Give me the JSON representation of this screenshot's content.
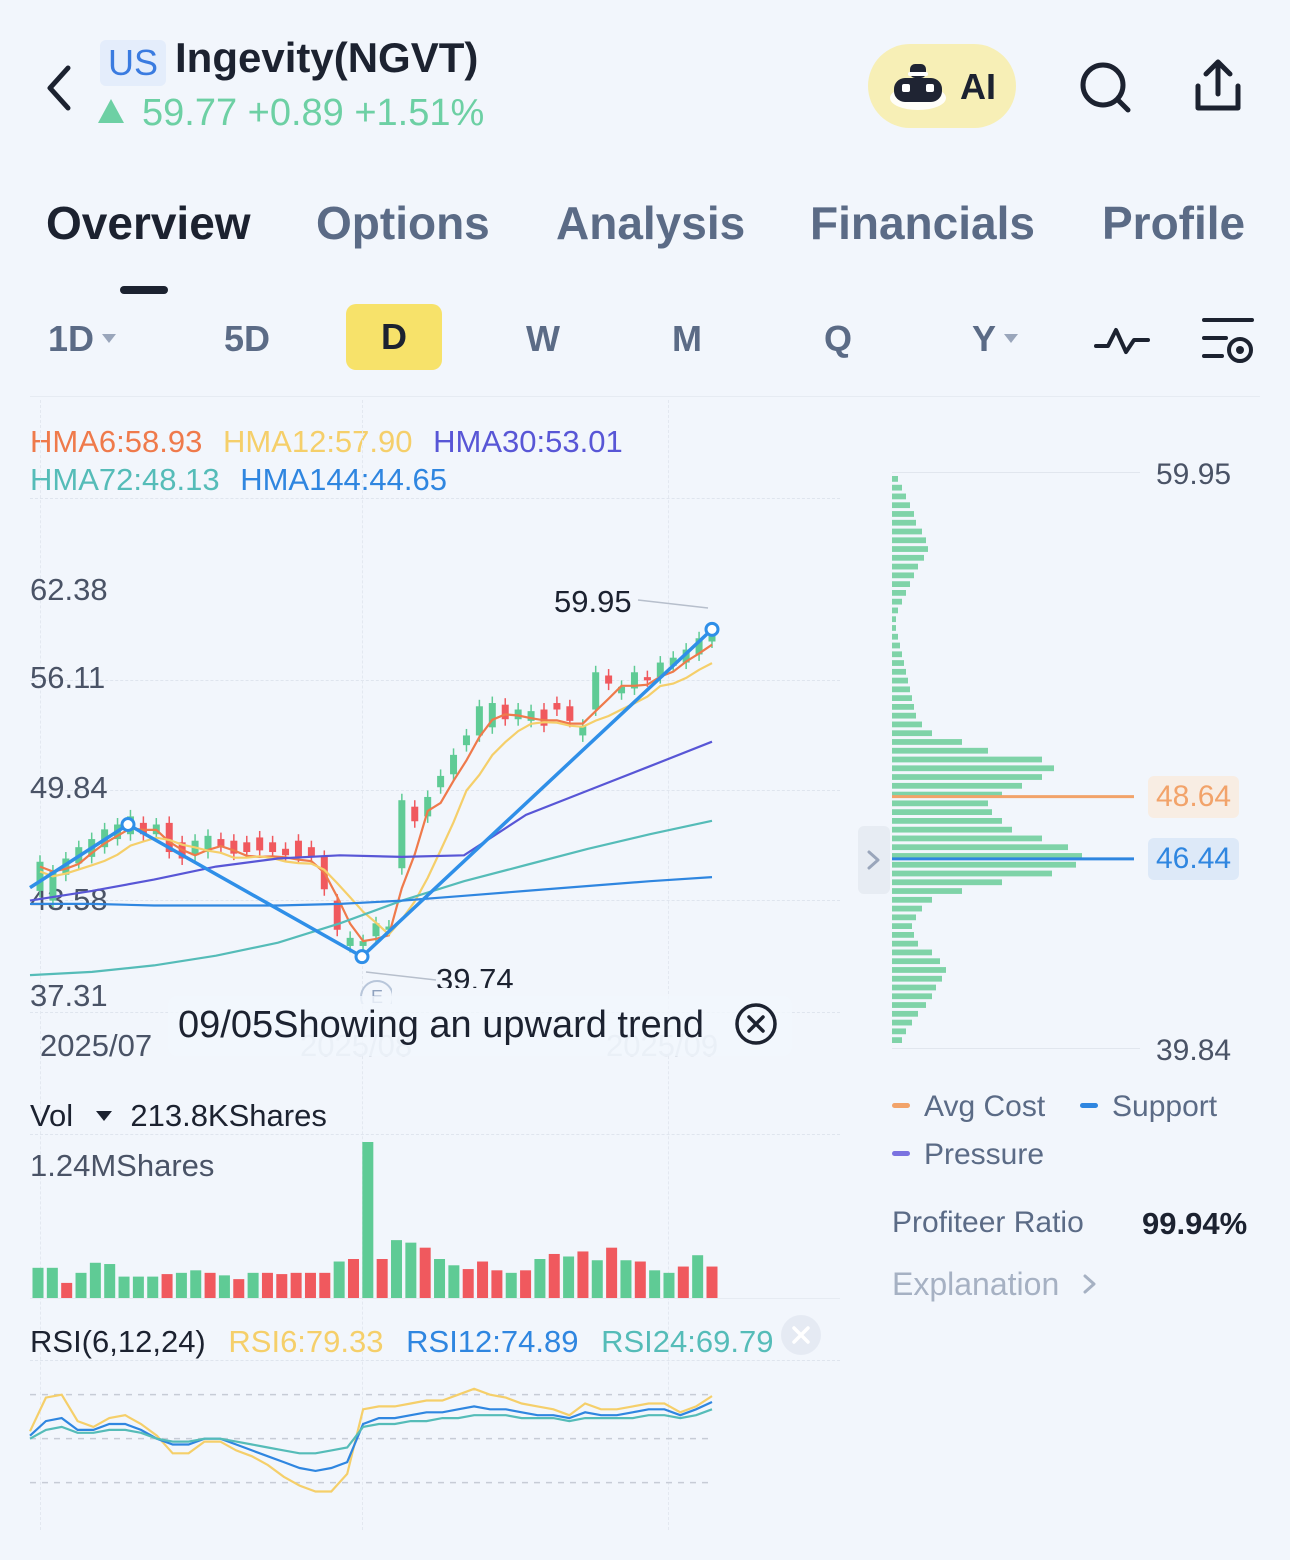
{
  "header": {
    "market": "US",
    "name": "Ingevity(NGVT)",
    "quote": "59.77 +0.89 +1.51%",
    "ai_label": "AI"
  },
  "tabs": [
    "Overview",
    "Options",
    "Analysis",
    "Financials",
    "Profile"
  ],
  "periods": [
    "1D",
    "5D",
    "D",
    "W",
    "M",
    "Q",
    "Y"
  ],
  "selected_period": "D",
  "indicators": {
    "hma6": "HMA6:58.93",
    "hma12": "HMA12:57.90",
    "hma30": "HMA30:53.01",
    "hma72": "HMA72:48.13",
    "hma144": "HMA144:44.65"
  },
  "price_axis": [
    "62.38",
    "56.11",
    "49.84",
    "43.58",
    "37.31"
  ],
  "date_axis": [
    "2025/07",
    "2025/08",
    "2025/09"
  ],
  "annotations": {
    "high": "59.95",
    "low": "39.74",
    "event": "E"
  },
  "tip": "09/05Showing an upward trend",
  "volume": {
    "label": "Vol",
    "value": "213.8KShares",
    "max": "1.24MShares"
  },
  "rsi": {
    "label": "RSI(6,12,24)",
    "rsi6": "RSI6:79.33",
    "rsi12": "RSI12:74.89",
    "rsi24": "RSI24:69.79"
  },
  "distribution": {
    "top": "59.95",
    "bottom": "39.84",
    "avg_cost": "48.64",
    "support": "46.44",
    "legend": {
      "avg_cost": "Avg Cost",
      "support": "Support",
      "pressure": "Pressure"
    },
    "profiteer_label": "Profiteer Ratio",
    "profiteer_value": "99.94%",
    "explanation": "Explanation"
  },
  "colors": {
    "up": "#5fcb95",
    "down": "#f0595e",
    "hma6": "#ef7a4b",
    "hma12": "#f5cf6a",
    "hma30": "#5856d6",
    "hma72": "#55bcb8",
    "hma144": "#2f86e0",
    "accent": "#2f8fe8"
  },
  "chart_data": [
    {
      "type": "candlestick",
      "title": "",
      "x_range": [
        "2025/07",
        "2025/09"
      ],
      "ylim": [
        37.31,
        62.38
      ],
      "candles": [
        {
          "o": 43.8,
          "c": 45.6
        },
        {
          "o": 43.2,
          "c": 45.0
        },
        {
          "o": 44.8,
          "c": 45.8
        },
        {
          "o": 45.5,
          "c": 46.5
        },
        {
          "o": 45.9,
          "c": 47.0
        },
        {
          "o": 46.5,
          "c": 47.6
        },
        {
          "o": 47.0,
          "c": 47.9
        },
        {
          "o": 47.3,
          "c": 48.4
        },
        {
          "o": 48.0,
          "c": 47.3
        },
        {
          "o": 47.3,
          "c": 47.9
        },
        {
          "o": 48.0,
          "c": 46.2
        },
        {
          "o": 46.8,
          "c": 45.8
        },
        {
          "o": 46.0,
          "c": 46.9
        },
        {
          "o": 46.2,
          "c": 47.2
        },
        {
          "o": 47.0,
          "c": 46.5
        },
        {
          "o": 46.9,
          "c": 46.1
        },
        {
          "o": 46.8,
          "c": 46.2
        },
        {
          "o": 47.1,
          "c": 46.3
        },
        {
          "o": 46.8,
          "c": 46.2
        },
        {
          "o": 46.4,
          "c": 46.0
        },
        {
          "o": 46.9,
          "c": 45.9
        },
        {
          "o": 46.5,
          "c": 45.9
        },
        {
          "o": 45.9,
          "c": 43.9
        },
        {
          "o": 43.2,
          "c": 41.4
        },
        {
          "o": 40.4,
          "c": 40.9
        },
        {
          "o": 40.4,
          "c": 40.7
        },
        {
          "o": 41.0,
          "c": 41.8
        },
        {
          "o": 41.4,
          "c": 41.6
        },
        {
          "o": 45.2,
          "c": 49.4
        },
        {
          "o": 49.0,
          "c": 48.1
        },
        {
          "o": 48.4,
          "c": 49.6
        },
        {
          "o": 50.2,
          "c": 50.9
        },
        {
          "o": 51.0,
          "c": 52.2
        },
        {
          "o": 52.8,
          "c": 53.4
        },
        {
          "o": 53.4,
          "c": 55.2
        },
        {
          "o": 53.9,
          "c": 55.4
        },
        {
          "o": 55.3,
          "c": 54.4
        },
        {
          "o": 54.4,
          "c": 55.0
        },
        {
          "o": 54.3,
          "c": 54.9
        },
        {
          "o": 55.0,
          "c": 54.0
        },
        {
          "o": 55.4,
          "c": 55.0
        },
        {
          "o": 55.2,
          "c": 54.3
        },
        {
          "o": 53.4,
          "c": 54.0
        },
        {
          "o": 55.0,
          "c": 57.3
        },
        {
          "o": 57.1,
          "c": 56.6
        },
        {
          "o": 56.0,
          "c": 56.4
        },
        {
          "o": 56.3,
          "c": 57.3
        },
        {
          "o": 57.0,
          "c": 56.8
        },
        {
          "o": 57.0,
          "c": 57.9
        },
        {
          "o": 57.7,
          "c": 58.2
        },
        {
          "o": 57.9,
          "c": 58.7
        },
        {
          "o": 58.4,
          "c": 59.4
        },
        {
          "o": 59.2,
          "c": 59.8
        }
      ],
      "trend_points": [
        {
          "label": "2025/07",
          "y": 44.0
        },
        {
          "label": "",
          "y": 47.9
        },
        {
          "label": "",
          "y": 39.74
        },
        {
          "label": "",
          "y": 59.95
        }
      ],
      "support_level": 46.44,
      "avg_cost_level": 48.64
    },
    {
      "type": "bar",
      "title": "",
      "series": [
        {
          "values": [
            0.24,
            0.24,
            0.12,
            0.2,
            0.28,
            0.27,
            0.17,
            0.17,
            0.17,
            0.19,
            0.2,
            0.22,
            0.2,
            0.18,
            0.15,
            0.2,
            0.2,
            0.19,
            0.2,
            0.2,
            0.2,
            0.29,
            0.31,
            1.24,
            0.31,
            0.46,
            0.44,
            0.4,
            0.31,
            0.26,
            0.23,
            0.29,
            0.22,
            0.2,
            0.22,
            0.31,
            0.35,
            0.33,
            0.37,
            0.3,
            0.4,
            0.3,
            0.29,
            0.22,
            0.2,
            0.25,
            0.34,
            0.25
          ]
        }
      ],
      "up": [
        1,
        1,
        0,
        1,
        1,
        1,
        1,
        1,
        1,
        0,
        1,
        1,
        0,
        1,
        0,
        1,
        0,
        0,
        0,
        0,
        0,
        1,
        0,
        1,
        0,
        1,
        1,
        0,
        1,
        1,
        0,
        0,
        0,
        1,
        0,
        1,
        0,
        1,
        0,
        1,
        0,
        1,
        0,
        1,
        1,
        0,
        1,
        0
      ]
    },
    {
      "type": "line",
      "title": "RSI(6,12,24)",
      "series": [
        {
          "name": "RSI6",
          "values": [
            55,
            78,
            80,
            62,
            58,
            64,
            66,
            60,
            52,
            40,
            40,
            48,
            48,
            42,
            38,
            32,
            24,
            18,
            14,
            14,
            26,
            70,
            72,
            72,
            74,
            76,
            76,
            80,
            84,
            80,
            78,
            74,
            72,
            70,
            66,
            74,
            70,
            70,
            72,
            74,
            74,
            68,
            72,
            79
          ]
        },
        {
          "name": "RSI12",
          "values": [
            52,
            62,
            64,
            56,
            56,
            60,
            60,
            56,
            50,
            46,
            46,
            50,
            50,
            46,
            42,
            38,
            34,
            30,
            28,
            30,
            34,
            60,
            64,
            64,
            66,
            68,
            68,
            70,
            72,
            70,
            70,
            68,
            66,
            66,
            64,
            68,
            66,
            66,
            68,
            70,
            70,
            66,
            70,
            75
          ]
        },
        {
          "name": "RSI24",
          "values": [
            50,
            56,
            58,
            54,
            54,
            56,
            56,
            54,
            50,
            48,
            48,
            50,
            50,
            48,
            46,
            44,
            42,
            40,
            40,
            42,
            44,
            58,
            60,
            60,
            62,
            62,
            64,
            64,
            66,
            66,
            66,
            64,
            64,
            64,
            62,
            64,
            64,
            64,
            64,
            66,
            66,
            64,
            66,
            70
          ]
        }
      ]
    }
  ]
}
